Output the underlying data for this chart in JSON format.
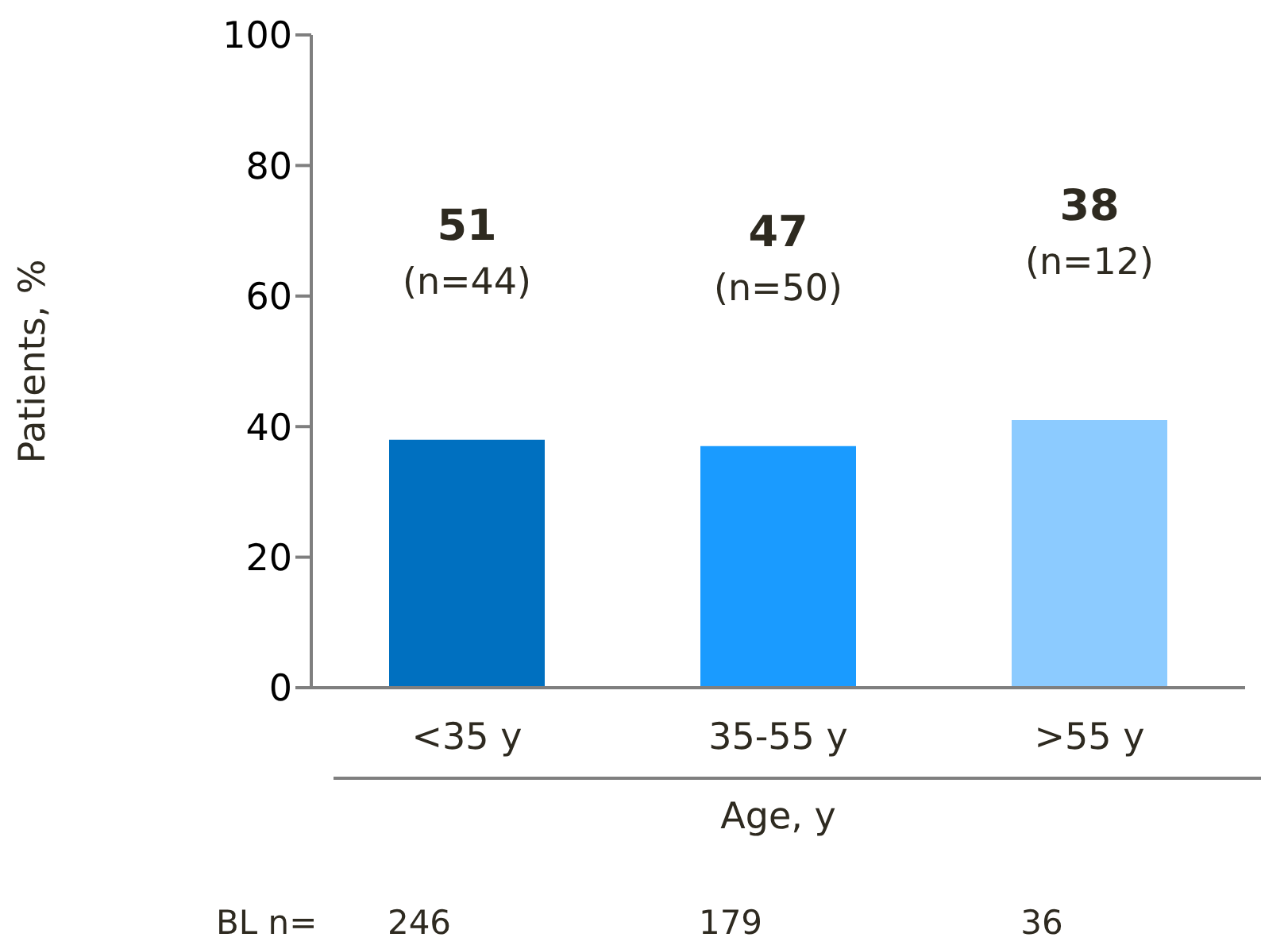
{
  "chart_data": {
    "type": "bar",
    "xlabel": "Age, y",
    "ylabel": "Patients, %",
    "categories": [
      "<35 y",
      "35-55 y",
      ">55 y"
    ],
    "values": [
      38,
      37,
      41
    ],
    "colors": [
      "#0070c0",
      "#1a9bff",
      "#8ccbff"
    ],
    "ylim": [
      0,
      100
    ],
    "yticks": [
      0,
      20,
      40,
      60,
      80,
      100
    ],
    "annotations": [
      "51",
      "(n=44)",
      "47",
      "(n=50)",
      "38",
      "(n=12)",
      "BL n=",
      "246",
      "179",
      "36"
    ]
  }
}
